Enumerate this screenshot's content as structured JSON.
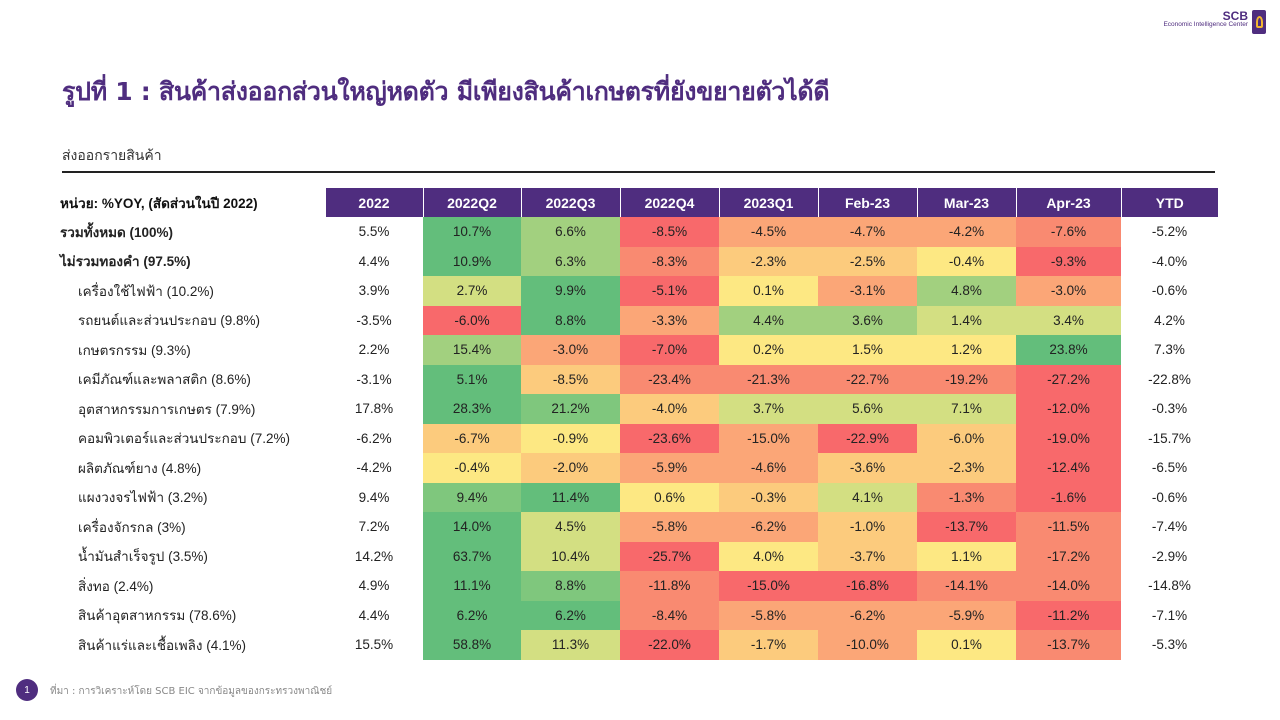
{
  "logo": {
    "brand": "SCB",
    "tagline": "Economic Intelligence Center"
  },
  "title": "รูปที่ 1 : สินค้าส่งออกส่วนใหญ่หดตัว มีเพียงสินค้าเกษตรที่ยังขยายตัวได้ดี",
  "subtitle": "ส่งออกรายสินค้า",
  "table": {
    "unit_label": "หน่วย: %YOY, (สัดส่วนในปี 2022)",
    "columns": [
      "2022",
      "2022Q2",
      "2022Q3",
      "2022Q4",
      "2023Q1",
      "Feb-23",
      "Mar-23",
      "Apr-23",
      "YTD"
    ],
    "palette": {
      "G": "#63be7b",
      "MG": "#7fc77d",
      "LG": "#a2d07f",
      "YG": "#d3df82",
      "Y": "#fde883",
      "LO": "#fccb7d",
      "O": "#fba677",
      "RO": "#f98a71",
      "R": "#f8696b"
    },
    "rows": [
      {
        "label": "รวมทั้งหมด (100%)",
        "style": "bold",
        "values": [
          "5.5%",
          "10.7%",
          "6.6%",
          "-8.5%",
          "-4.5%",
          "-4.7%",
          "-4.2%",
          "-7.6%",
          "-5.2%"
        ],
        "colors": [
          "G",
          "LG",
          "R",
          "O",
          "O",
          "O",
          "RO"
        ]
      },
      {
        "label": "ไม่รวมทองคำ (97.5%)",
        "style": "bold",
        "values": [
          "4.4%",
          "10.9%",
          "6.3%",
          "-8.3%",
          "-2.3%",
          "-2.5%",
          "-0.4%",
          "-9.3%",
          "-4.0%"
        ],
        "colors": [
          "G",
          "LG",
          "RO",
          "LO",
          "LO",
          "Y",
          "R"
        ]
      },
      {
        "label": "เครื่องใช้ไฟฟ้า (10.2%)",
        "style": "indent",
        "values": [
          "3.9%",
          "2.7%",
          "9.9%",
          "-5.1%",
          "0.1%",
          "-3.1%",
          "4.8%",
          "-3.0%",
          "-0.6%"
        ],
        "colors": [
          "YG",
          "G",
          "R",
          "Y",
          "O",
          "LG",
          "O"
        ]
      },
      {
        "label": "รถยนต์และส่วนประกอบ (9.8%)",
        "style": "indent",
        "values": [
          "-3.5%",
          "-6.0%",
          "8.8%",
          "-3.3%",
          "4.4%",
          "3.6%",
          "1.4%",
          "3.4%",
          "4.2%"
        ],
        "colors": [
          "R",
          "G",
          "O",
          "LG",
          "LG",
          "YG",
          "YG"
        ]
      },
      {
        "label": "เกษตรกรรม (9.3%)",
        "style": "indent",
        "values": [
          "2.2%",
          "15.4%",
          "-3.0%",
          "-7.0%",
          "0.2%",
          "1.5%",
          "1.2%",
          "23.8%",
          "7.3%"
        ],
        "colors": [
          "LG",
          "O",
          "R",
          "Y",
          "Y",
          "Y",
          "G"
        ]
      },
      {
        "label": "เคมีภัณฑ์และพลาสติก (8.6%)",
        "style": "indent",
        "values": [
          "-3.1%",
          "5.1%",
          "-8.5%",
          "-23.4%",
          "-21.3%",
          "-22.7%",
          "-19.2%",
          "-27.2%",
          "-22.8%"
        ],
        "colors": [
          "G",
          "LO",
          "RO",
          "RO",
          "RO",
          "RO",
          "R"
        ]
      },
      {
        "label": "อุตสาหกรรมการเกษตร (7.9%)",
        "style": "indent",
        "values": [
          "17.8%",
          "28.3%",
          "21.2%",
          "-4.0%",
          "3.7%",
          "5.6%",
          "7.1%",
          "-12.0%",
          "-0.3%"
        ],
        "colors": [
          "G",
          "MG",
          "LO",
          "YG",
          "YG",
          "YG",
          "R"
        ]
      },
      {
        "label": "คอมพิวเตอร์และส่วนประกอบ (7.2%)",
        "style": "indent",
        "values": [
          "-6.2%",
          "-6.7%",
          "-0.9%",
          "-23.6%",
          "-15.0%",
          "-22.9%",
          "-6.0%",
          "-19.0%",
          "-15.7%"
        ],
        "colors": [
          "LO",
          "Y",
          "R",
          "O",
          "R",
          "LO",
          "R"
        ]
      },
      {
        "label": "ผลิตภัณฑ์ยาง (4.8%)",
        "style": "indent",
        "values": [
          "-4.2%",
          "-0.4%",
          "-2.0%",
          "-5.9%",
          "-4.6%",
          "-3.6%",
          "-2.3%",
          "-12.4%",
          "-6.5%"
        ],
        "colors": [
          "Y",
          "LO",
          "O",
          "O",
          "LO",
          "LO",
          "R"
        ]
      },
      {
        "label": "แผงวงจรไฟฟ้า (3.2%)",
        "style": "indent",
        "values": [
          "9.4%",
          "9.4%",
          "11.4%",
          "0.6%",
          "-0.3%",
          "4.1%",
          "-1.3%",
          "-1.6%",
          "-0.6%"
        ],
        "colors": [
          "MG",
          "G",
          "Y",
          "LO",
          "YG",
          "RO",
          "R"
        ]
      },
      {
        "label": "เครื่องจักรกล (3%)",
        "style": "indent",
        "values": [
          "7.2%",
          "14.0%",
          "4.5%",
          "-5.8%",
          "-6.2%",
          "-1.0%",
          "-13.7%",
          "-11.5%",
          "-7.4%"
        ],
        "colors": [
          "G",
          "YG",
          "O",
          "O",
          "LO",
          "R",
          "RO"
        ]
      },
      {
        "label": "น้ำมันสำเร็จรูป (3.5%)",
        "style": "indent",
        "values": [
          "14.2%",
          "63.7%",
          "10.4%",
          "-25.7%",
          "4.0%",
          "-3.7%",
          "1.1%",
          "-17.2%",
          "-2.9%"
        ],
        "colors": [
          "G",
          "YG",
          "R",
          "Y",
          "LO",
          "Y",
          "RO"
        ]
      },
      {
        "label": "สิ่งทอ (2.4%)",
        "style": "indent",
        "values": [
          "4.9%",
          "11.1%",
          "8.8%",
          "-11.8%",
          "-15.0%",
          "-16.8%",
          "-14.1%",
          "-14.0%",
          "-14.8%"
        ],
        "colors": [
          "G",
          "MG",
          "RO",
          "R",
          "R",
          "RO",
          "RO"
        ]
      },
      {
        "label": "สินค้าอุตสาหกรรม (78.6%)",
        "style": "indent",
        "values": [
          "4.4%",
          "6.2%",
          "6.2%",
          "-8.4%",
          "-5.8%",
          "-6.2%",
          "-5.9%",
          "-11.2%",
          "-7.1%"
        ],
        "colors": [
          "G",
          "G",
          "RO",
          "O",
          "O",
          "O",
          "R"
        ]
      },
      {
        "label": "สินค้าแร่และเชื้อเพลิง (4.1%)",
        "style": "indent",
        "values": [
          "15.5%",
          "58.8%",
          "11.3%",
          "-22.0%",
          "-1.7%",
          "-10.0%",
          "0.1%",
          "-13.7%",
          "-5.3%"
        ],
        "colors": [
          "G",
          "YG",
          "R",
          "LO",
          "O",
          "Y",
          "RO"
        ]
      }
    ]
  },
  "footer": {
    "page": "1",
    "source": "ที่มา : การวิเคราะห์โดย SCB EIC จากข้อมูลของกระทรวงพาณิชย์"
  }
}
